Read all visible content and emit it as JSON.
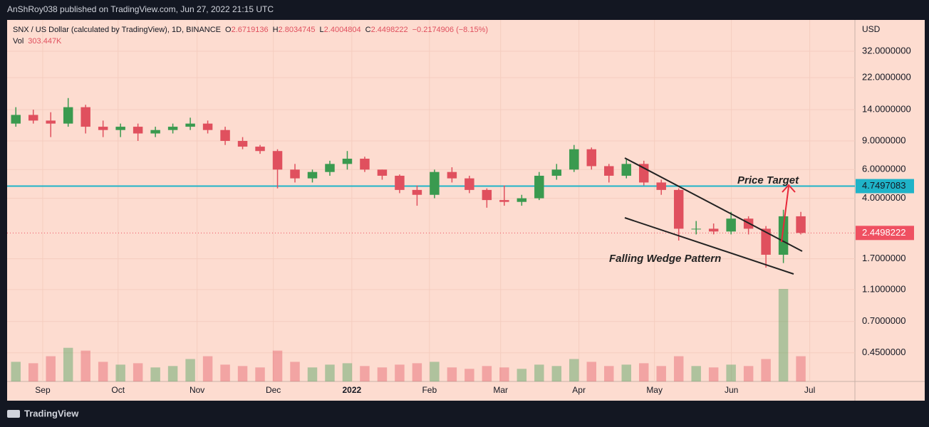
{
  "header": {
    "publisher": "AnShRoy038 published on TradingView.com, Jun 27, 2022 21:15 UTC",
    "brand": "TradingView"
  },
  "legend": {
    "symbol": "SNX / US Dollar (calculated by TradingView), 1D, BINANCE",
    "o_label": "O",
    "open": "2.6719136",
    "h_label": "H",
    "high": "2.8034745",
    "l_label": "L",
    "low": "2.4004804",
    "c_label": "C",
    "close": "2.4498222",
    "change": "−0.2174906 (−8.15%)",
    "vol_label": "Vol",
    "vol": "303.447K"
  },
  "chart_data": {
    "type": "candlestick",
    "currency": "USD",
    "log_scale": true,
    "grid": true,
    "up_color": "#3a9a4f",
    "down_color": "#e0505e",
    "open": [
      11.5,
      13,
      12,
      11.5,
      14.5,
      11,
      10.5,
      11,
      10,
      10.5,
      11,
      11.5,
      10.5,
      9,
      8.3,
      7.8,
      6,
      5.3,
      5.8,
      6.5,
      7,
      6,
      5.5,
      4.5,
      4.2,
      5.8,
      5.3,
      4.5,
      3.9,
      3.8,
      4,
      5.5,
      6,
      8,
      6.3,
      5.5,
      6.5,
      5,
      4.5,
      2.6,
      2.6,
      2.5,
      3,
      2.6,
      1.8,
      3.1
    ],
    "high": [
      14.5,
      14,
      13.5,
      16.5,
      15,
      12,
      11.5,
      11.5,
      11,
      11.5,
      12.5,
      12,
      11,
      9.5,
      8.5,
      8,
      6.5,
      6,
      6.8,
      7.8,
      7.2,
      6,
      5.6,
      4.8,
      6,
      6.2,
      5.5,
      4.6,
      4.8,
      4.2,
      5.8,
      6.5,
      8.5,
      8.2,
      6.5,
      7,
      6.8,
      5.2,
      4.6,
      2.9,
      2.8,
      3.3,
      3.1,
      2.7,
      3.4,
      3.3
    ],
    "low": [
      11,
      11.5,
      9.5,
      11,
      10,
      9.5,
      9.5,
      9,
      9.5,
      10,
      10.5,
      10,
      8.5,
      8,
      7.5,
      4.6,
      5,
      5,
      5.5,
      6,
      5.8,
      5.2,
      4.3,
      3.6,
      4,
      5,
      4.3,
      3.5,
      3.6,
      3.6,
      3.9,
      5.2,
      5.8,
      6,
      5,
      5.3,
      4.8,
      4.2,
      2.2,
      2.4,
      2.4,
      2.4,
      2.4,
      1.5,
      1.6,
      2.4
    ],
    "close": [
      13,
      12,
      11.5,
      14.5,
      11,
      10.5,
      11,
      10,
      10.5,
      11,
      11.5,
      10.5,
      9,
      8.3,
      7.8,
      6,
      5.3,
      5.8,
      6.5,
      7,
      6,
      5.5,
      4.5,
      4.2,
      5.8,
      5.3,
      4.5,
      3.9,
      3.8,
      4,
      5.5,
      6,
      8,
      6.3,
      5.5,
      6.5,
      5,
      4.5,
      2.6,
      2.6,
      2.5,
      3,
      2.6,
      1.8,
      3.1,
      2.45
    ],
    "volume": [
      700,
      650,
      900,
      1200,
      1100,
      700,
      600,
      650,
      500,
      550,
      800,
      900,
      600,
      550,
      500,
      1100,
      700,
      500,
      600,
      650,
      550,
      500,
      600,
      650,
      700,
      500,
      450,
      550,
      500,
      450,
      600,
      550,
      800,
      700,
      550,
      600,
      650,
      550,
      900,
      550,
      500,
      600,
      550,
      800,
      3300,
      900
    ],
    "xlim": [
      -0.5,
      48.1
    ],
    "xticks": [
      {
        "value": 1.54,
        "label": "Sep"
      },
      {
        "value": 5.86,
        "label": "Oct"
      },
      {
        "value": 10.39,
        "label": "Nov"
      },
      {
        "value": 14.76,
        "label": "Dec"
      },
      {
        "value": 19.26,
        "label": "2022"
      },
      {
        "value": 23.71,
        "label": "Feb"
      },
      {
        "value": 27.79,
        "label": "Mar"
      },
      {
        "value": 32.28,
        "label": "Apr"
      },
      {
        "value": 36.61,
        "label": "May"
      },
      {
        "value": 41.02,
        "label": "Jun"
      },
      {
        "value": 45.51,
        "label": "Jul"
      }
    ],
    "ylim": [
      0.3,
      49.8
    ],
    "yticks": [
      {
        "value": 32,
        "label": "32.0000000"
      },
      {
        "value": 22,
        "label": "22.0000000"
      },
      {
        "value": 14,
        "label": "14.0000000"
      },
      {
        "value": 9,
        "label": "9.0000000"
      },
      {
        "value": 6,
        "label": "6.0000000"
      },
      {
        "value": 4,
        "label": "4.0000000"
      },
      {
        "value": 1.7,
        "label": "1.7000000"
      },
      {
        "value": 1.1,
        "label": "1.1000000"
      },
      {
        "value": 0.7,
        "label": "0.7000000"
      },
      {
        "value": 0.45,
        "label": "0.4500000"
      }
    ],
    "level_line": {
      "value": 4.7497083,
      "color": "#1fb3c8"
    },
    "last_price": {
      "value": 2.4498222,
      "color": "#ef5061"
    },
    "annotations": {
      "target": "Price Target",
      "pattern": "Falling Wedge Pattern"
    }
  }
}
